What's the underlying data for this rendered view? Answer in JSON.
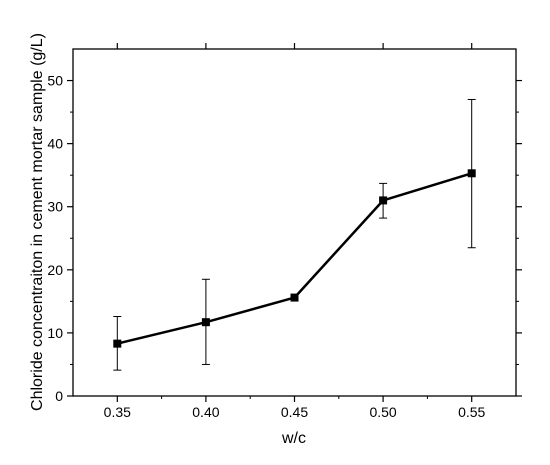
{
  "chart_data": {
    "type": "line",
    "title": "",
    "xlabel": "w/c",
    "ylabel": "Chloride concentraiton in cement mortar sample (g/L)",
    "x": [
      0.35,
      0.4,
      0.45,
      0.5,
      0.55
    ],
    "xtick_labels": [
      "0.35",
      "0.40",
      "0.45",
      "0.50",
      "0.55"
    ],
    "xlim": [
      0.325,
      0.575
    ],
    "ylim": [
      0,
      55
    ],
    "yticks": [
      0,
      10,
      20,
      30,
      40,
      50
    ],
    "ytick_labels": [
      "0",
      "10",
      "20",
      "30",
      "40",
      "50"
    ],
    "grid": false,
    "legend": "none",
    "series": [
      {
        "values": [
          8.3,
          11.7,
          15.6,
          31.0,
          35.3
        ],
        "error_lower": [
          4.1,
          5.0,
          15.6,
          28.2,
          23.5
        ],
        "error_upper": [
          12.6,
          18.5,
          15.6,
          33.7,
          47.0
        ],
        "marker": "square",
        "color": "#000000"
      }
    ]
  }
}
